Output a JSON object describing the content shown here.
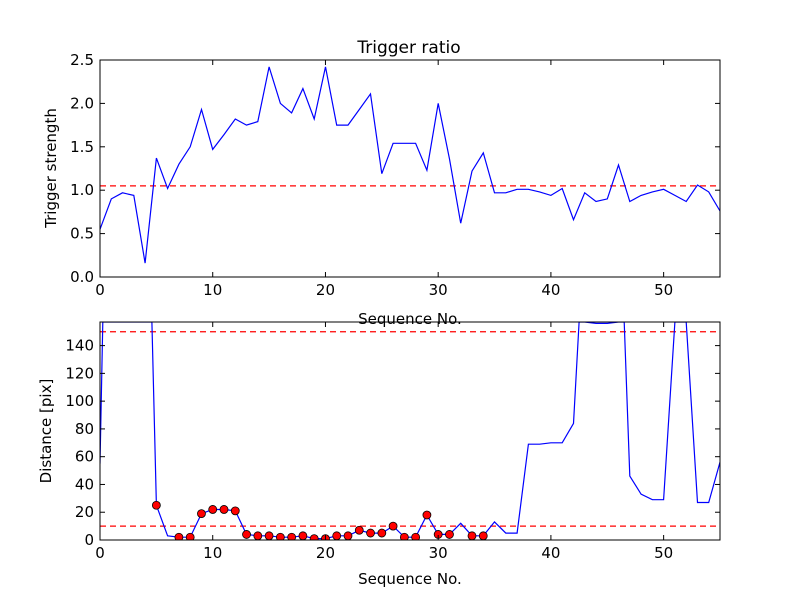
{
  "chart_data": [
    {
      "type": "line",
      "title": "Trigger ratio",
      "xlabel": "Sequence No.",
      "ylabel": "Trigger strength",
      "xlim": [
        0,
        55
      ],
      "ylim": [
        0,
        2.5
      ],
      "xticks": [
        0,
        10,
        20,
        30,
        40,
        50
      ],
      "xtick_labels": [
        "0",
        "10",
        "20",
        "30",
        "40",
        "50"
      ],
      "yticks": [
        0,
        0.5,
        1,
        1.5,
        2,
        2.5
      ],
      "ytick_labels": [
        "0.0",
        "0.5",
        "1.0",
        "1.5",
        "2.0",
        "2.5"
      ],
      "grid": false,
      "threshold": {
        "value": 1.05,
        "color": "#ff0000",
        "style": "dashed"
      },
      "series": [
        {
          "color": "#0000ff",
          "x": [
            0,
            1,
            2,
            3,
            4,
            5,
            6,
            7,
            8,
            9,
            10,
            11,
            12,
            13,
            14,
            15,
            16,
            17,
            18,
            19,
            20,
            21,
            22,
            23,
            24,
            25,
            26,
            27,
            28,
            29,
            30,
            31,
            32,
            33,
            34,
            35,
            36,
            37,
            38,
            39,
            40,
            41,
            42,
            43,
            44,
            45,
            46,
            47,
            48,
            49,
            50,
            51,
            52,
            53,
            54,
            55
          ],
          "y": [
            0.55,
            0.9,
            0.97,
            0.94,
            0.16,
            1.37,
            1.02,
            1.3,
            1.5,
            1.93,
            1.47,
            1.64,
            1.82,
            1.75,
            1.79,
            2.42,
            2.0,
            1.89,
            2.17,
            1.82,
            2.42,
            1.75,
            1.75,
            1.93,
            2.11,
            1.19,
            1.54,
            1.54,
            1.54,
            1.23,
            2.0,
            1.36,
            0.62,
            1.22,
            1.43,
            0.97,
            0.97,
            1.01,
            1.01,
            0.98,
            0.94,
            1.02,
            0.66,
            0.97,
            0.87,
            0.9,
            1.29,
            0.87,
            0.94,
            0.98,
            1.01,
            0.94,
            0.87,
            1.06,
            0.98,
            0.76
          ]
        }
      ]
    },
    {
      "type": "line",
      "title": "",
      "xlabel": "Sequence No.",
      "ylabel": "Distance [pix]",
      "xlim": [
        0,
        55
      ],
      "ylim": [
        0,
        157
      ],
      "xticks": [
        0,
        10,
        20,
        30,
        40,
        50
      ],
      "xtick_labels": [
        "0",
        "10",
        "20",
        "30",
        "40",
        "50"
      ],
      "yticks": [
        0,
        20,
        40,
        60,
        80,
        100,
        120,
        140
      ],
      "ytick_labels": [
        "0",
        "20",
        "40",
        "60",
        "80",
        "100",
        "120",
        "140"
      ],
      "grid": false,
      "thresholds": [
        {
          "value": 150,
          "color": "#ff0000",
          "style": "dashed"
        },
        {
          "value": 10,
          "color": "#ff0000",
          "style": "dashed"
        }
      ],
      "series": [
        {
          "color": "#0000ff",
          "x": [
            0,
            0.25,
            4.6,
            5,
            6,
            7,
            8,
            9,
            10,
            11,
            12,
            13,
            14,
            15,
            16,
            17,
            18,
            19,
            20,
            21,
            22,
            23,
            24,
            25,
            26,
            27,
            28,
            29,
            30,
            31,
            32,
            33,
            34,
            35,
            36,
            37,
            38,
            39,
            40,
            41,
            42,
            42.5,
            43,
            44,
            45,
            46,
            46.5,
            47,
            48,
            49,
            50,
            51,
            52,
            53,
            54,
            55
          ],
          "y": [
            55,
            157,
            157,
            25,
            3,
            2,
            2,
            19,
            22,
            22,
            21,
            4,
            3,
            3,
            2,
            2,
            3,
            1,
            1,
            3,
            3,
            7,
            5,
            5,
            10,
            2,
            2,
            18,
            4,
            4,
            12,
            3,
            3,
            13,
            5,
            5,
            69,
            69,
            70,
            70,
            84,
            157,
            157,
            156,
            156,
            157,
            157,
            46,
            33,
            29,
            29,
            157,
            157,
            27,
            27,
            56
          ]
        }
      ],
      "markers": {
        "color": "#ff0000",
        "edge_color": "#000000",
        "x": [
          5,
          7,
          8,
          9,
          10,
          11,
          12,
          13,
          14,
          15,
          16,
          17,
          18,
          19,
          20,
          21,
          22,
          23,
          24,
          25,
          26,
          27,
          28,
          29,
          30,
          31,
          33,
          34
        ],
        "y": [
          25,
          2,
          2,
          19,
          22,
          22,
          21,
          4,
          3,
          3,
          2,
          2,
          3,
          1,
          1,
          3,
          3,
          7,
          5,
          5,
          10,
          2,
          2,
          18,
          4,
          4,
          3,
          3
        ]
      }
    }
  ]
}
